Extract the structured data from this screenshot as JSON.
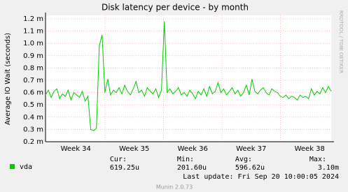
{
  "chart_data": {
    "type": "line",
    "title": "Disk latency per device - by month",
    "y_label": "Average IO Wait (seconds)",
    "side_label": "RRDTOOL / TOBI OETIKER",
    "ylim": [
      0.0002,
      0.0012
    ],
    "yticks": [
      {
        "value": 0.0002,
        "label": "0.2 m"
      },
      {
        "value": 0.0003,
        "label": "0.3 m"
      },
      {
        "value": 0.0004,
        "label": "0.4 m"
      },
      {
        "value": 0.0005,
        "label": "0.5 m"
      },
      {
        "value": 0.0006,
        "label": "0.6 m"
      },
      {
        "value": 0.0007,
        "label": "0.7 m"
      },
      {
        "value": 0.0008,
        "label": "0.8 m"
      },
      {
        "value": 0.0009,
        "label": "0.9 m"
      },
      {
        "value": 0.001,
        "label": "1.0 m"
      },
      {
        "value": 0.0011,
        "label": "1.1 m"
      },
      {
        "value": 0.0012,
        "label": "1.2 m"
      }
    ],
    "grid": true,
    "week_labels": [
      "Week 34",
      "Week 35",
      "Week 36",
      "Week 37",
      "Week 38"
    ],
    "series": [
      {
        "name": "vda",
        "color": "#00cc00",
        "values": [
          0.00058,
          0.00062,
          0.00056,
          0.00061,
          0.00063,
          0.00055,
          0.00059,
          0.00057,
          0.00062,
          0.00054,
          0.0006,
          0.00058,
          0.00056,
          0.00061,
          0.00053,
          0.00057,
          0.0003,
          0.00029,
          0.00031,
          0.00098,
          0.00107,
          0.0006,
          0.00071,
          0.00058,
          0.00062,
          0.0006,
          0.00064,
          0.00059,
          0.00066,
          0.00061,
          0.00058,
          0.00063,
          0.00069,
          0.0006,
          0.00062,
          0.00057,
          0.00064,
          0.00061,
          0.00059,
          0.00063,
          0.00056,
          0.00062,
          0.00118,
          0.0006,
          0.00063,
          0.00059,
          0.00061,
          0.00064,
          0.00058,
          0.0006,
          0.00057,
          0.00062,
          0.00059,
          0.00055,
          0.00061,
          0.00058,
          0.00063,
          0.00057,
          0.00065,
          0.00059,
          0.00061,
          0.00068,
          0.0006,
          0.00063,
          0.00058,
          0.00061,
          0.00064,
          0.00059,
          0.00062,
          0.00057,
          0.0006,
          0.00066,
          0.00058,
          0.00071,
          0.00061,
          0.00059,
          0.00062,
          0.00064,
          0.0006,
          0.00058,
          0.00063,
          0.00061,
          0.0006,
          0.00057,
          0.00056,
          0.00058,
          0.00055,
          0.00057,
          0.00056,
          0.00054,
          0.00058,
          0.00056,
          0.00057,
          0.00055,
          0.00063,
          0.00058,
          0.00061,
          0.00059,
          0.00064,
          0.0006,
          0.00065,
          0.00061
        ]
      }
    ],
    "stats": [
      {
        "label": "Cur:",
        "value": "619.25u"
      },
      {
        "label": "Min:",
        "value": "201.60u"
      },
      {
        "label": "Avg:",
        "value": "596.62u"
      },
      {
        "label": "Max:",
        "value": "3.10m"
      }
    ],
    "last_update": "Last update: Fri Sep 20 10:00:05 2024",
    "footer": "Munin 2.0.73"
  }
}
